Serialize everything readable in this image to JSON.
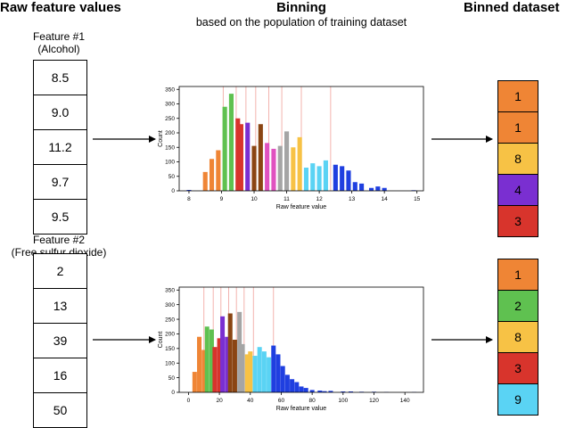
{
  "headers": {
    "raw": "Raw feature values",
    "binning": "Binning",
    "binning_sub": "based on the population of training dataset",
    "binned": "Binned dataset"
  },
  "features": [
    {
      "label_line1": "Feature #1",
      "label_line2": "(Alcohol)",
      "raw_values": [
        "8.5",
        "9.0",
        "11.2",
        "9.7",
        "9.5"
      ],
      "binned": [
        {
          "value": "1",
          "color": "#ef8535"
        },
        {
          "value": "1",
          "color": "#ef8535"
        },
        {
          "value": "8",
          "color": "#f7c245"
        },
        {
          "value": "4",
          "color": "#7a2fd1"
        },
        {
          "value": "3",
          "color": "#d8342c"
        }
      ]
    },
    {
      "label_line1": "Feature #2",
      "label_line2": "(Free sulfur dioxide)",
      "raw_values": [
        "2",
        "13",
        "39",
        "16",
        "50"
      ],
      "binned": [
        {
          "value": "1",
          "color": "#ef8535"
        },
        {
          "value": "2",
          "color": "#5fc150"
        },
        {
          "value": "8",
          "color": "#f7c245"
        },
        {
          "value": "3",
          "color": "#d8342c"
        },
        {
          "value": "9",
          "color": "#5ad3f4"
        }
      ]
    }
  ],
  "chart_data": [
    {
      "type": "bar",
      "xlabel": "Raw feature value",
      "ylabel": "Count",
      "xlim": [
        7.7,
        15.2
      ],
      "ylim": [
        0,
        360
      ],
      "xticks": [
        8,
        9,
        10,
        11,
        12,
        13,
        14,
        15
      ],
      "yticks": [
        0,
        50,
        100,
        150,
        200,
        250,
        300,
        350
      ],
      "bar_width": 0.14,
      "bin_edges": [
        9.05,
        9.45,
        9.75,
        10.05,
        10.45,
        10.85,
        11.45,
        12.35
      ],
      "bars": [
        {
          "x": 8.0,
          "y": 3,
          "color": "#1f3fe0"
        },
        {
          "x": 8.5,
          "y": 65,
          "color": "#ef8535"
        },
        {
          "x": 8.7,
          "y": 110,
          "color": "#ef8535"
        },
        {
          "x": 8.9,
          "y": 140,
          "color": "#ef8535"
        },
        {
          "x": 9.1,
          "y": 290,
          "color": "#5fc150"
        },
        {
          "x": 9.3,
          "y": 335,
          "color": "#5fc150"
        },
        {
          "x": 9.5,
          "y": 250,
          "color": "#d8342c"
        },
        {
          "x": 9.6,
          "y": 230,
          "color": "#d8342c"
        },
        {
          "x": 9.8,
          "y": 235,
          "color": "#7a2fd1"
        },
        {
          "x": 10.0,
          "y": 155,
          "color": "#8b4513"
        },
        {
          "x": 10.2,
          "y": 230,
          "color": "#8b4513"
        },
        {
          "x": 10.4,
          "y": 165,
          "color": "#e052c0"
        },
        {
          "x": 10.6,
          "y": 145,
          "color": "#e052c0"
        },
        {
          "x": 10.8,
          "y": 155,
          "color": "#a5a5a5"
        },
        {
          "x": 11.0,
          "y": 205,
          "color": "#a5a5a5"
        },
        {
          "x": 11.2,
          "y": 150,
          "color": "#f7c245"
        },
        {
          "x": 11.4,
          "y": 185,
          "color": "#f7c245"
        },
        {
          "x": 11.6,
          "y": 80,
          "color": "#5ad3f4"
        },
        {
          "x": 11.8,
          "y": 95,
          "color": "#5ad3f4"
        },
        {
          "x": 12.0,
          "y": 85,
          "color": "#5ad3f4"
        },
        {
          "x": 12.2,
          "y": 105,
          "color": "#5ad3f4"
        },
        {
          "x": 12.5,
          "y": 90,
          "color": "#1f3fe0"
        },
        {
          "x": 12.7,
          "y": 85,
          "color": "#1f3fe0"
        },
        {
          "x": 12.9,
          "y": 70,
          "color": "#1f3fe0"
        },
        {
          "x": 13.1,
          "y": 30,
          "color": "#1f3fe0"
        },
        {
          "x": 13.3,
          "y": 25,
          "color": "#1f3fe0"
        },
        {
          "x": 13.6,
          "y": 10,
          "color": "#1f3fe0"
        },
        {
          "x": 13.8,
          "y": 15,
          "color": "#1f3fe0"
        },
        {
          "x": 14.0,
          "y": 10,
          "color": "#1f3fe0"
        },
        {
          "x": 14.9,
          "y": 2,
          "color": "#1f3fe0"
        }
      ]
    },
    {
      "type": "bar",
      "xlabel": "Raw feature value",
      "ylabel": "Count",
      "xlim": [
        -6,
        152
      ],
      "ylim": [
        0,
        360
      ],
      "xticks": [
        0,
        20,
        40,
        60,
        80,
        100,
        120,
        140
      ],
      "yticks": [
        0,
        50,
        100,
        150,
        200,
        250,
        300,
        350
      ],
      "bar_width": 2.9,
      "bin_edges": [
        10,
        16,
        21,
        26,
        31,
        36,
        42,
        55
      ],
      "bars": [
        {
          "x": 4,
          "y": 70,
          "color": "#ef8535"
        },
        {
          "x": 7,
          "y": 190,
          "color": "#ef8535"
        },
        {
          "x": 10,
          "y": 145,
          "color": "#ef8535"
        },
        {
          "x": 12,
          "y": 225,
          "color": "#5fc150"
        },
        {
          "x": 15,
          "y": 215,
          "color": "#5fc150"
        },
        {
          "x": 17,
          "y": 155,
          "color": "#d8342c"
        },
        {
          "x": 20,
          "y": 185,
          "color": "#d8342c"
        },
        {
          "x": 22,
          "y": 260,
          "color": "#7a2fd1"
        },
        {
          "x": 25,
          "y": 190,
          "color": "#7a2fd1"
        },
        {
          "x": 27,
          "y": 270,
          "color": "#8b4513"
        },
        {
          "x": 30,
          "y": 180,
          "color": "#8b4513"
        },
        {
          "x": 33,
          "y": 275,
          "color": "#a5a5a5"
        },
        {
          "x": 35,
          "y": 165,
          "color": "#a5a5a5"
        },
        {
          "x": 38,
          "y": 130,
          "color": "#f7c245"
        },
        {
          "x": 40,
          "y": 140,
          "color": "#f7c245"
        },
        {
          "x": 43,
          "y": 125,
          "color": "#5ad3f4"
        },
        {
          "x": 46,
          "y": 155,
          "color": "#5ad3f4"
        },
        {
          "x": 49,
          "y": 140,
          "color": "#5ad3f4"
        },
        {
          "x": 52,
          "y": 120,
          "color": "#5ad3f4"
        },
        {
          "x": 55,
          "y": 160,
          "color": "#1f3fe0"
        },
        {
          "x": 58,
          "y": 130,
          "color": "#1f3fe0"
        },
        {
          "x": 61,
          "y": 90,
          "color": "#1f3fe0"
        },
        {
          "x": 64,
          "y": 60,
          "color": "#1f3fe0"
        },
        {
          "x": 67,
          "y": 45,
          "color": "#1f3fe0"
        },
        {
          "x": 70,
          "y": 35,
          "color": "#1f3fe0"
        },
        {
          "x": 73,
          "y": 20,
          "color": "#1f3fe0"
        },
        {
          "x": 76,
          "y": 15,
          "color": "#1f3fe0"
        },
        {
          "x": 80,
          "y": 8,
          "color": "#1f3fe0"
        },
        {
          "x": 85,
          "y": 6,
          "color": "#1f3fe0"
        },
        {
          "x": 88,
          "y": 4,
          "color": "#1f3fe0"
        },
        {
          "x": 92,
          "y": 5,
          "color": "#1f3fe0"
        },
        {
          "x": 100,
          "y": 3,
          "color": "#1f3fe0"
        },
        {
          "x": 105,
          "y": 3,
          "color": "#1f3fe0"
        },
        {
          "x": 112,
          "y": 2,
          "color": "#1f3fe0"
        },
        {
          "x": 120,
          "y": 2,
          "color": "#1f3fe0"
        },
        {
          "x": 128,
          "y": 1,
          "color": "#1f3fe0"
        },
        {
          "x": 146,
          "y": 1,
          "color": "#1f3fe0"
        }
      ]
    }
  ]
}
